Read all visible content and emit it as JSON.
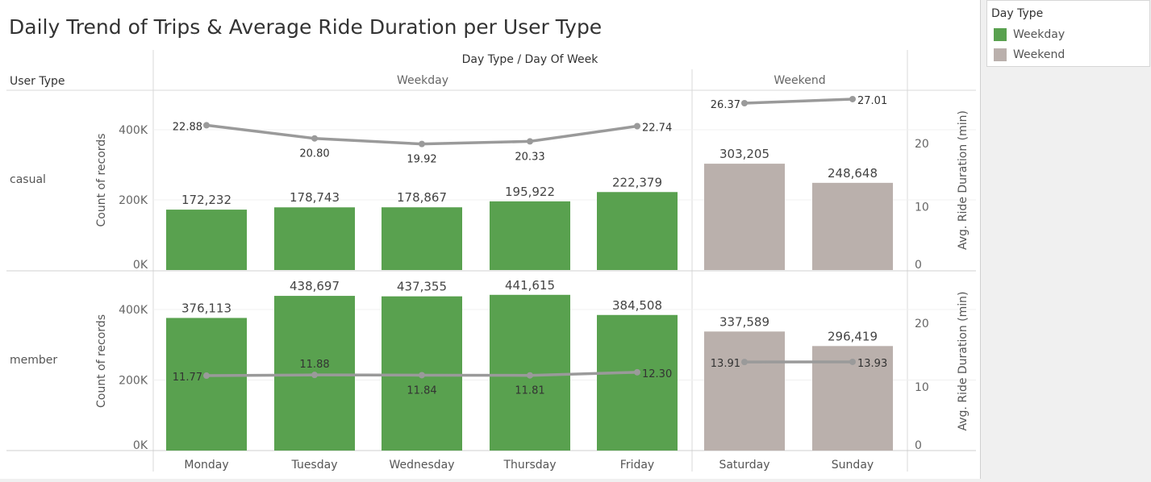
{
  "chart_data": {
    "type": "bar",
    "title": "Daily Trend of Trips & Average Ride Duration per User Type",
    "row_header": "User Type",
    "column_header": "Day Type / Day Of Week",
    "groups": [
      {
        "name": "Weekday",
        "days": [
          "Monday",
          "Tuesday",
          "Wednesday",
          "Thursday",
          "Friday"
        ]
      },
      {
        "name": "Weekend",
        "days": [
          "Saturday",
          "Sunday"
        ]
      }
    ],
    "categories": [
      "Monday",
      "Tuesday",
      "Wednesday",
      "Thursday",
      "Friday",
      "Saturday",
      "Sunday"
    ],
    "day_type": [
      "Weekday",
      "Weekday",
      "Weekday",
      "Weekday",
      "Weekday",
      "Weekend",
      "Weekend"
    ],
    "rows": [
      {
        "user_type": "casual",
        "count_labels": [
          "172,232",
          "178,743",
          "178,867",
          "195,922",
          "222,379",
          "303,205",
          "248,648"
        ],
        "counts": [
          172232,
          178743,
          178867,
          195922,
          222379,
          303205,
          248648
        ],
        "duration_labels": [
          "22.88",
          "20.80",
          "19.92",
          "20.33",
          "22.74",
          "26.37",
          "27.01"
        ],
        "durations": [
          22.88,
          20.8,
          19.92,
          20.33,
          22.74,
          26.37,
          27.01
        ]
      },
      {
        "user_type": "member",
        "count_labels": [
          "376,113",
          "438,697",
          "437,355",
          "441,615",
          "384,508",
          "337,589",
          "296,419"
        ],
        "counts": [
          376113,
          438697,
          437355,
          441615,
          384508,
          337589,
          296419
        ],
        "duration_labels": [
          "11.77",
          "11.88",
          "11.84",
          "11.81",
          "12.30",
          "13.91",
          "13.93"
        ],
        "durations": [
          11.77,
          11.88,
          11.84,
          11.81,
          12.3,
          13.91,
          13.93
        ]
      }
    ],
    "left_axis": {
      "label": "Count of records",
      "ticks": [
        "0K",
        "200K",
        "400K"
      ],
      "tick_values": [
        0,
        200000,
        400000
      ],
      "range": [
        0,
        510000
      ]
    },
    "right_axis": {
      "label": "Avg. Ride Duration (min)",
      "ticks": [
        "0",
        "10",
        "20"
      ],
      "tick_values": [
        0,
        10,
        20
      ],
      "range": [
        0,
        28.6
      ]
    },
    "legend": {
      "title": "Day Type",
      "items": [
        {
          "label": "Weekday",
          "color": "#59a14f"
        },
        {
          "label": "Weekend",
          "color": "#bab0ac"
        }
      ]
    },
    "line_color": "#9a9a9a"
  }
}
